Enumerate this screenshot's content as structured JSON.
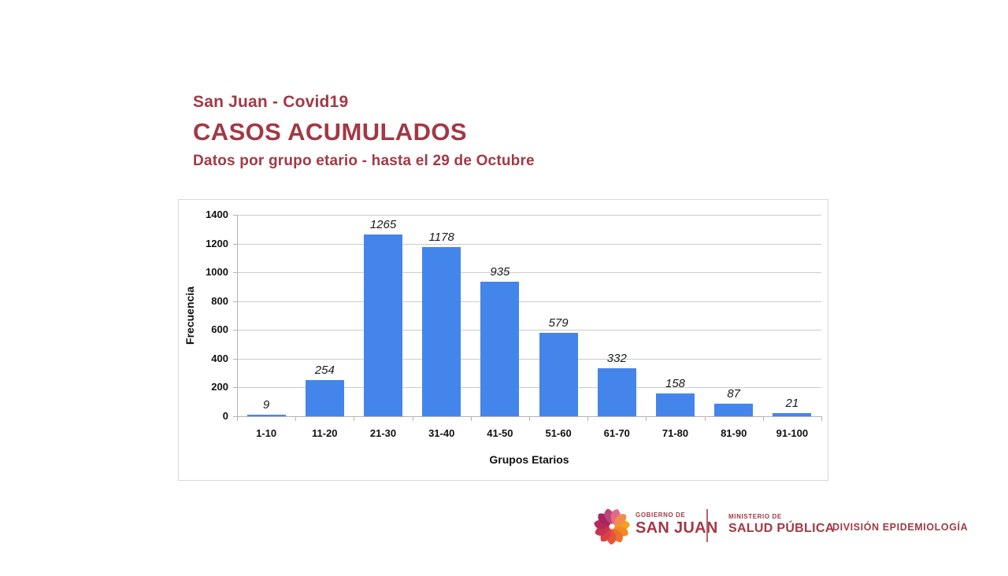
{
  "colors": {
    "brand_red": "#A23945",
    "bar_blue": "#4485EC",
    "gridline": "#cccccc",
    "axis": "#b3b3b3",
    "chart_border": "#d8d8d8",
    "divider_red": "#b3636c"
  },
  "header": {
    "line1": "San Juan - Covid19",
    "line2": "CASOS ACUMULADOS",
    "line3": "Datos por grupo etario - hasta el 29 de Octubre"
  },
  "chart_data": {
    "type": "bar",
    "title": "",
    "categories": [
      "1-10",
      "11-20",
      "21-30",
      "31-40",
      "41-50",
      "51-60",
      "61-70",
      "71-80",
      "81-90",
      "91-100"
    ],
    "values": [
      9,
      254,
      1265,
      1178,
      935,
      579,
      332,
      158,
      87,
      21
    ],
    "xlabel": "Grupos Etarios",
    "ylabel": "Frecuencia",
    "ylim": [
      0,
      1400
    ],
    "yticks": [
      0,
      200,
      400,
      600,
      800,
      1000,
      1200,
      1400
    ],
    "grid": true,
    "legend_position": "none",
    "data_labels": true,
    "data_label_style": "italic"
  },
  "footer": {
    "gov_small": "GOBIERNO DE",
    "gov_big": "SAN JUAN",
    "ministry_small": "MINISTERIO DE",
    "ministry_big": "SALUD PÚBLICA",
    "division": "DIVISIÓN EPIDEMIOLOGÍA",
    "logo": "swirl-icon"
  }
}
